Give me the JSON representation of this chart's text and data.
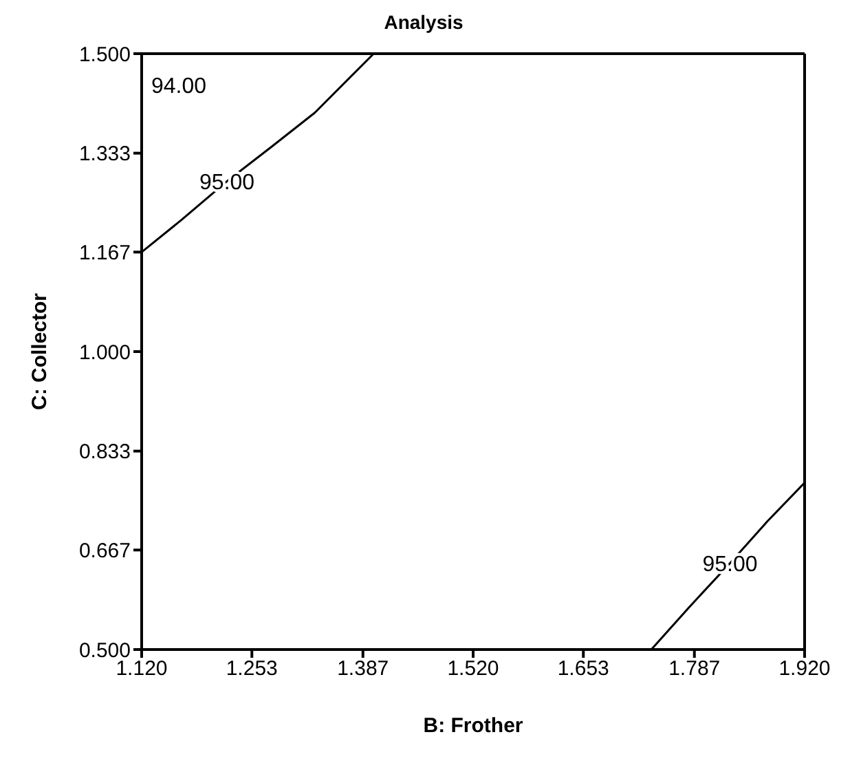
{
  "chart_data": {
    "type": "line",
    "title": "Analysis",
    "xlabel": "B: Frother",
    "ylabel": "C: Collector",
    "series": [
      {
        "color": "#000000",
        "x": [
          1.12,
          1.168,
          1.223,
          1.276,
          1.329,
          1.4
        ],
        "values": [
          1.167,
          1.221,
          1.286,
          1.343,
          1.401,
          1.5
        ]
      },
      {
        "color": "#000000",
        "x": [
          1.735,
          1.78,
          1.83,
          1.875,
          1.92
        ],
        "values": [
          0.5,
          0.57,
          0.645,
          0.715,
          0.78
        ]
      }
    ],
    "xlim": [
      1.12,
      1.92
    ],
    "ylim": [
      0.5,
      1.5
    ],
    "xticks": [
      {
        "value": 1.12,
        "label": "1.120"
      },
      {
        "value": 1.253,
        "label": "1.253"
      },
      {
        "value": 1.387,
        "label": "1.387"
      },
      {
        "value": 1.52,
        "label": "1.520"
      },
      {
        "value": 1.653,
        "label": "1.653"
      },
      {
        "value": 1.787,
        "label": "1.787"
      },
      {
        "value": 1.92,
        "label": "1.920"
      }
    ],
    "yticks": [
      {
        "value": 0.5,
        "label": "0.500"
      },
      {
        "value": 0.667,
        "label": "0.667"
      },
      {
        "value": 0.833,
        "label": "0.833"
      },
      {
        "value": 1.0,
        "label": "1.000"
      },
      {
        "value": 1.167,
        "label": "1.167"
      },
      {
        "value": 1.333,
        "label": "1.333"
      },
      {
        "value": 1.5,
        "label": "1.500"
      }
    ],
    "annotations": [
      "94.00",
      {
        "text": "95.00",
        "x": 1.223,
        "y": 1.286
      },
      {
        "text": "95.00",
        "x": 1.83,
        "y": 0.645
      }
    ],
    "grid": false,
    "marker": "none",
    "line_style": "solid"
  }
}
